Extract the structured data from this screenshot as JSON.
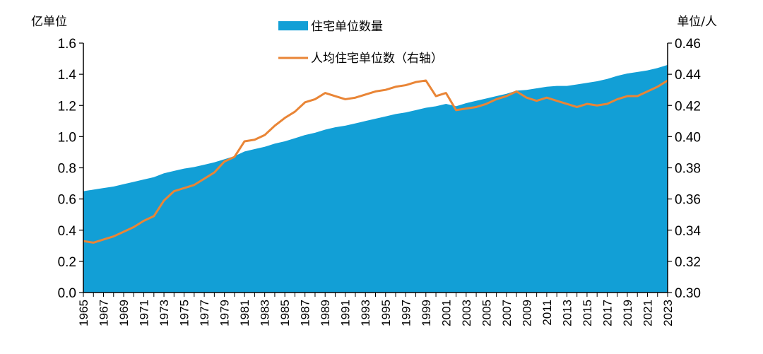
{
  "chart_data": {
    "type": "area+line",
    "left_unit": "亿单位",
    "right_unit": "单位/人",
    "legend": [
      {
        "label": "住宅单位数量",
        "color": "#129fd6",
        "symbol": "area"
      },
      {
        "label": "人均住宅单位数（右轴）",
        "color": "#e98536",
        "symbol": "line"
      }
    ],
    "y_left": {
      "min": 0.0,
      "max": 1.6,
      "ticks": [
        "0.0",
        "0.2",
        "0.4",
        "0.6",
        "0.8",
        "1.0",
        "1.2",
        "1.4",
        "1.6"
      ]
    },
    "y_right": {
      "min": 0.3,
      "max": 0.46,
      "ticks": [
        "0.30",
        "0.32",
        "0.34",
        "0.36",
        "0.38",
        "0.40",
        "0.42",
        "0.44",
        "0.46"
      ]
    },
    "x_tick_labels": [
      "1965",
      "1967",
      "1969",
      "1971",
      "1973",
      "1975",
      "1977",
      "1979",
      "1981",
      "1983",
      "1985",
      "1987",
      "1989",
      "1991",
      "1993",
      "1995",
      "1997",
      "1999",
      "2001",
      "2003",
      "2005",
      "2007",
      "2009",
      "2011",
      "2013",
      "2015",
      "2017",
      "2019",
      "2021",
      "2023"
    ],
    "years": [
      1965,
      1966,
      1967,
      1968,
      1969,
      1970,
      1971,
      1972,
      1973,
      1974,
      1975,
      1976,
      1977,
      1978,
      1979,
      1980,
      1981,
      1982,
      1983,
      1984,
      1985,
      1986,
      1987,
      1988,
      1989,
      1990,
      1991,
      1992,
      1993,
      1994,
      1995,
      1996,
      1997,
      1998,
      1999,
      2000,
      2001,
      2002,
      2003,
      2004,
      2005,
      2006,
      2007,
      2008,
      2009,
      2010,
      2011,
      2012,
      2013,
      2014,
      2015,
      2016,
      2017,
      2018,
      2019,
      2020,
      2021,
      2022,
      2023
    ],
    "series": [
      {
        "name": "住宅单位数量",
        "axis": "left",
        "type": "area",
        "color": "#129fd6",
        "values": [
          0.65,
          0.66,
          0.67,
          0.68,
          0.695,
          0.71,
          0.725,
          0.74,
          0.765,
          0.78,
          0.795,
          0.805,
          0.82,
          0.835,
          0.855,
          0.875,
          0.905,
          0.92,
          0.935,
          0.955,
          0.97,
          0.99,
          1.01,
          1.025,
          1.045,
          1.06,
          1.07,
          1.085,
          1.1,
          1.115,
          1.13,
          1.145,
          1.155,
          1.17,
          1.185,
          1.195,
          1.21,
          1.195,
          1.215,
          1.23,
          1.245,
          1.26,
          1.275,
          1.295,
          1.3,
          1.31,
          1.32,
          1.325,
          1.325,
          1.335,
          1.345,
          1.355,
          1.37,
          1.39,
          1.405,
          1.415,
          1.425,
          1.44,
          1.46
        ]
      },
      {
        "name": "人均住宅单位数（右轴）",
        "axis": "right",
        "type": "line",
        "color": "#e98536",
        "values": [
          0.333,
          0.332,
          0.334,
          0.336,
          0.339,
          0.342,
          0.346,
          0.349,
          0.359,
          0.365,
          0.367,
          0.369,
          0.373,
          0.377,
          0.384,
          0.387,
          0.397,
          0.398,
          0.401,
          0.407,
          0.412,
          0.416,
          0.422,
          0.424,
          0.428,
          0.426,
          0.424,
          0.425,
          0.427,
          0.429,
          0.43,
          0.432,
          0.433,
          0.435,
          0.436,
          0.426,
          0.428,
          0.417,
          0.418,
          0.419,
          0.421,
          0.424,
          0.426,
          0.429,
          0.425,
          0.423,
          0.425,
          0.423,
          0.421,
          0.419,
          0.421,
          0.42,
          0.421,
          0.424,
          0.426,
          0.426,
          0.429,
          0.432,
          0.436
        ]
      }
    ]
  }
}
